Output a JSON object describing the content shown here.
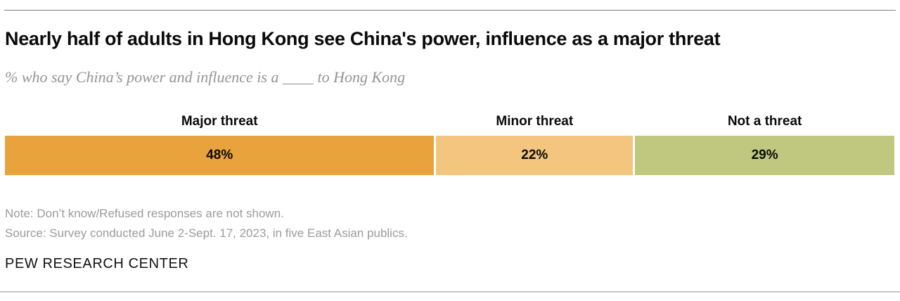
{
  "header": {
    "title": "Nearly half of adults in Hong Kong see China's power, influence as a major threat",
    "subtitle": "% who say China’s power and influence is a ____ to Hong Kong"
  },
  "chart_data": {
    "type": "bar",
    "variant": "horizontal-stacked-single-row",
    "title": "Nearly half of adults in Hong Kong see China's power, influence as a major threat",
    "subtitle": "% who say China’s power and influence is a ____ to Hong Kong",
    "unit": "%",
    "categories": [
      "Major threat",
      "Minor threat",
      "Not a threat"
    ],
    "values": [
      48,
      22,
      29
    ],
    "value_labels": [
      "48%",
      "22%",
      "29%"
    ],
    "colors": [
      "#e9a33c",
      "#f3c57f",
      "#bfc87e"
    ],
    "label_position": "above-segments",
    "value_label_position": "inside-segments"
  },
  "footer": {
    "note": "Note: Don’t know/Refused responses are not shown.",
    "source": "Source: Survey conducted June 2-Sept. 17, 2023, in five East Asian publics.",
    "brand": "PEW RESEARCH CENTER"
  }
}
